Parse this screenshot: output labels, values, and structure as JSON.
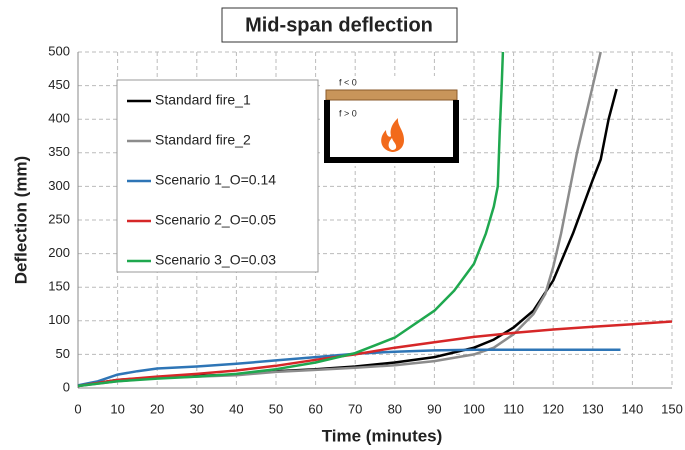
{
  "chart_data": {
    "type": "line",
    "title": "Mid-span deflection",
    "xlabel": "Time (minutes)",
    "ylabel": "Deflection (mm)",
    "xlim": [
      0,
      150
    ],
    "ylim": [
      0,
      500
    ],
    "xticks": [
      0,
      10,
      20,
      30,
      40,
      50,
      60,
      70,
      80,
      90,
      100,
      110,
      120,
      130,
      140,
      150
    ],
    "yticks": [
      0,
      50,
      100,
      150,
      200,
      250,
      300,
      350,
      400,
      450,
      500
    ],
    "grid": true,
    "legend": "upper left",
    "annotations": [
      "f < 0",
      "f > 0"
    ],
    "series": [
      {
        "name": "Standard fire_1",
        "color": "#000000",
        "x": [
          0,
          10,
          20,
          30,
          40,
          50,
          60,
          70,
          80,
          90,
          100,
          105,
          110,
          115,
          120,
          125,
          130,
          132,
          134,
          136
        ],
        "values": [
          3,
          12,
          16,
          18,
          20,
          25,
          28,
          32,
          38,
          46,
          60,
          72,
          90,
          115,
          160,
          230,
          310,
          340,
          400,
          445
        ]
      },
      {
        "name": "Standard fire_2",
        "color": "#8c8c8c",
        "x": [
          0,
          10,
          20,
          30,
          40,
          50,
          60,
          70,
          80,
          90,
          100,
          105,
          110,
          115,
          118,
          120,
          122,
          124,
          126,
          128,
          130,
          132
        ],
        "values": [
          3,
          10,
          15,
          17,
          19,
          24,
          27,
          30,
          34,
          40,
          50,
          60,
          80,
          110,
          140,
          180,
          230,
          290,
          350,
          400,
          450,
          500
        ]
      },
      {
        "name": "Scenario 1_O=0.14",
        "color": "#2e75b6",
        "x": [
          0,
          5,
          10,
          15,
          20,
          30,
          40,
          50,
          60,
          70,
          80,
          90,
          100,
          110,
          120,
          130,
          137
        ],
        "values": [
          4,
          10,
          20,
          25,
          29,
          32,
          36,
          41,
          46,
          51,
          54,
          56,
          57,
          57,
          57,
          57,
          57
        ]
      },
      {
        "name": "Scenario 2_O=0.05",
        "color": "#d62728",
        "x": [
          0,
          10,
          20,
          30,
          40,
          50,
          60,
          70,
          80,
          90,
          100,
          110,
          120,
          130,
          140,
          150
        ],
        "values": [
          3,
          12,
          17,
          21,
          26,
          33,
          42,
          50,
          60,
          68,
          76,
          82,
          87,
          91,
          95,
          99
        ]
      },
      {
        "name": "Scenario 3_O=0.03",
        "color": "#1fa84f",
        "x": [
          0,
          10,
          20,
          30,
          40,
          50,
          60,
          70,
          80,
          90,
          95,
          100,
          103,
          105,
          106,
          106.5,
          107,
          107.3
        ],
        "values": [
          3,
          10,
          14,
          17,
          21,
          28,
          38,
          52,
          75,
          115,
          145,
          185,
          230,
          270,
          300,
          380,
          450,
          500
        ]
      }
    ]
  }
}
